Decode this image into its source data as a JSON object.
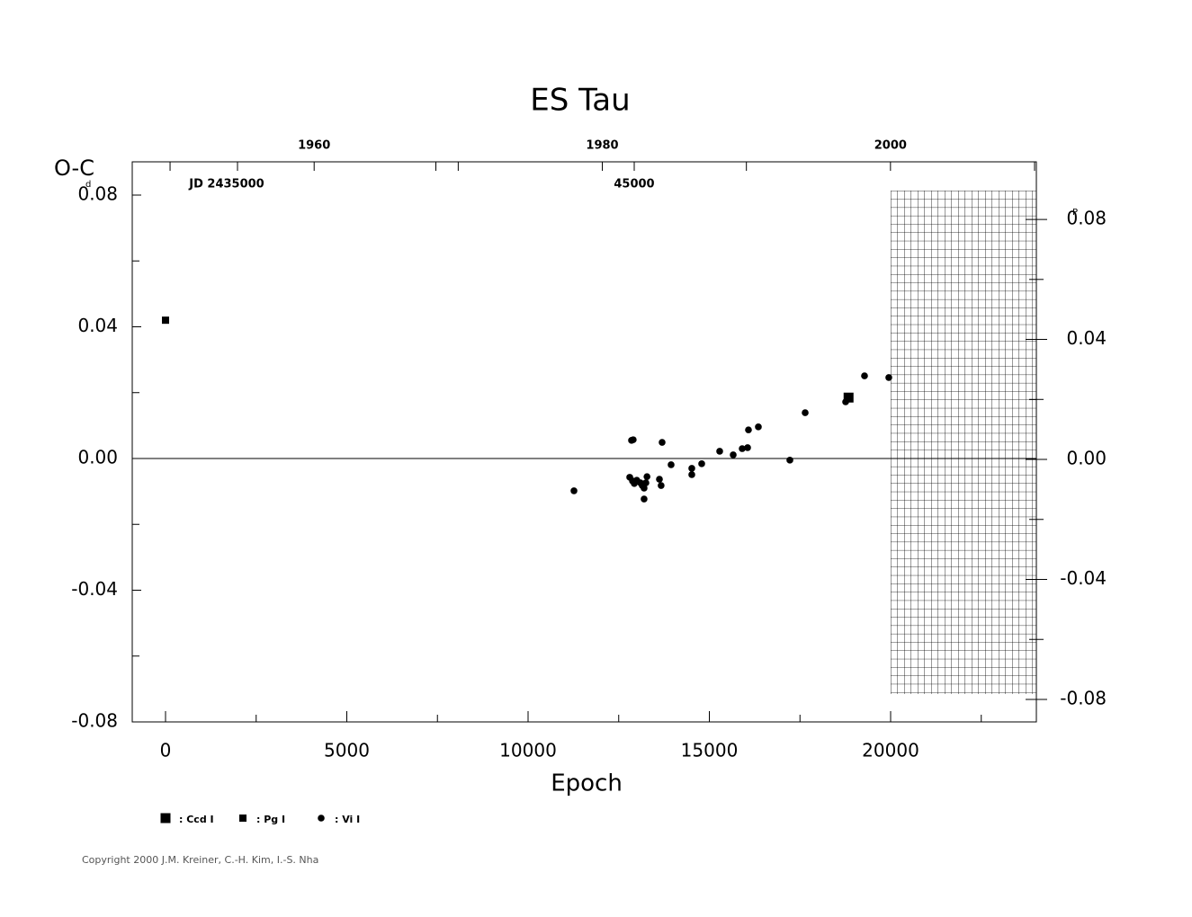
{
  "chart_data": {
    "type": "scatter",
    "title": "ES Tau",
    "xlabel": "Epoch",
    "ylabel": "O-C",
    "yunit": "d",
    "y2unit": "P",
    "copyright": "Copyright 2000 J.M. Kreiner, C.-H. Kim, I.-S. Nha",
    "xlim": [
      -918,
      24020
    ],
    "xticks": [
      0,
      5000,
      10000,
      15000,
      20000
    ],
    "xminorticks": [
      2500,
      7500,
      12500,
      17500,
      22500
    ],
    "ylim": [
      -0.08,
      0.0901
    ],
    "yticks": [
      -0.08,
      -0.04,
      {
        "value": 0,
        "label": "0.00"
      },
      0.04,
      0.08
    ],
    "yminorticks": [
      -0.06,
      -0.02,
      0.02,
      0.06
    ],
    "y2lim": [
      -0.0875,
      0.0992
    ],
    "y2ticks": [
      -0.08,
      -0.04,
      {
        "value": 0,
        "label": "0.00"
      },
      0.04,
      0.08
    ],
    "y2minorticks": [
      -0.06,
      -0.02,
      0.02,
      0.06
    ],
    "yearlim": [
      1947.375,
      2010.125
    ],
    "yearticks": [
      1960,
      1980,
      2000
    ],
    "yearminorticks": [
      1950,
      1970,
      1990,
      2010
    ],
    "jdlim": [
      2432347,
      2455136
    ],
    "jdticks": [
      {
        "value": 2435000,
        "label": "JD 2435000"
      },
      {
        "value": 2445000,
        "label": "45000"
      }
    ],
    "jdminorticks": [
      2440000
    ],
    "hline": 0,
    "series": [
      {
        "name": ": Ccd I",
        "color": "#000000",
        "marker": "square-large",
        "x": [
          18840
        ],
        "values": [
          0.0185
        ]
      },
      {
        "name": ": Pg I",
        "color": "#000000",
        "marker": "square-small",
        "x": [
          0
        ],
        "values": [
          0.042
        ]
      },
      {
        "name": ": Vi I",
        "color": "#000000",
        "marker": "circle",
        "x": [
          11266,
          12854,
          12900,
          12804,
          12880,
          12930,
          13000,
          13100,
          13150,
          13200,
          13250,
          13280,
          13200,
          13697,
          13623,
          13670,
          13945,
          14516,
          14516,
          14789,
          15285,
          15658,
          15906,
          16055,
          16079,
          16352,
          17221,
          17643,
          18759,
          19280,
          19950
        ],
        "values": [
          -0.0098,
          0.0055,
          0.0057,
          -0.0057,
          -0.0068,
          -0.0076,
          -0.0066,
          -0.0074,
          -0.0082,
          -0.009,
          -0.0074,
          -0.0055,
          -0.0123,
          0.0049,
          -0.0063,
          -0.0082,
          -0.0019,
          -0.003,
          -0.0049,
          -0.0016,
          0.0022,
          0.0011,
          0.003,
          0.0033,
          0.0087,
          0.0096,
          -0.0005,
          0.0139,
          0.0172,
          0.0251,
          0.0246
        ]
      }
    ]
  }
}
